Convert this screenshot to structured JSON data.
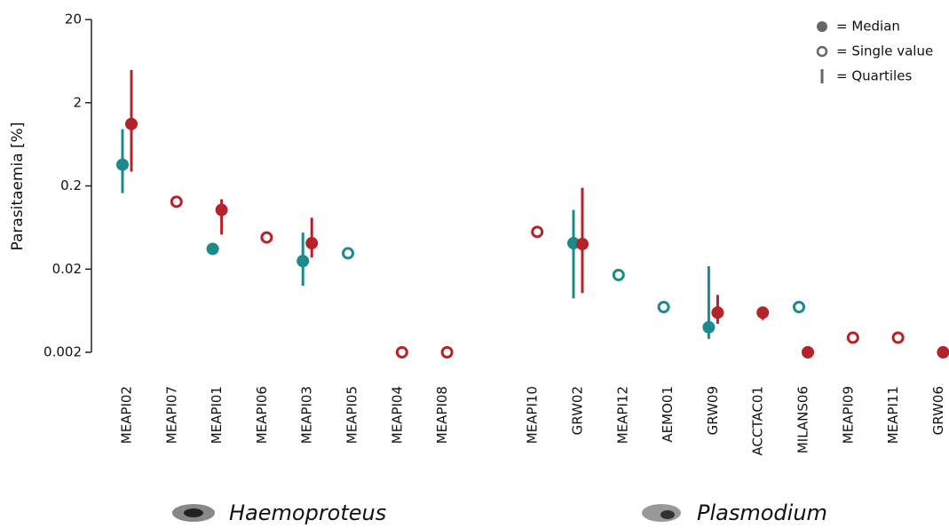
{
  "chart_data": {
    "type": "scatter",
    "ylabel": "Parasitaemia [%]",
    "log_y": true,
    "ylim": [
      0.002,
      20
    ],
    "yticks": [
      20,
      2,
      0.2,
      0.02,
      0.002
    ],
    "categories": [
      "MEAPI02",
      "MEAPI07",
      "MEAPI01",
      "MEAPI06",
      "MEAPI03",
      "MEAPI05",
      "MEAPI04",
      "MEAPI08",
      null,
      "MEAPI10",
      "GRW02",
      "MEAPI12",
      "AEMO01",
      "GRW09",
      "ACCTAC01",
      "MILANS06",
      "MEAPI09",
      "MEAPI11",
      "GRW06"
    ],
    "series": [
      {
        "color": "#1b8a8a",
        "values": [
          0.36,
          null,
          0.035,
          null,
          0.025,
          0.031,
          null,
          null,
          null,
          null,
          0.041,
          0.017,
          0.007,
          0.004,
          null,
          0.007,
          null,
          null,
          null
        ],
        "marker": [
          "median",
          null,
          "median",
          null,
          "median",
          "single",
          null,
          null,
          null,
          null,
          "median",
          "single",
          "single",
          "median",
          null,
          "single",
          null,
          null,
          null
        ],
        "q1": [
          0.164,
          null,
          null,
          null,
          0.0126,
          null,
          null,
          null,
          null,
          null,
          0.0089,
          null,
          null,
          0.0029,
          null,
          null,
          null,
          null,
          null
        ],
        "q3": [
          0.96,
          null,
          null,
          null,
          0.055,
          null,
          null,
          null,
          null,
          null,
          0.103,
          null,
          null,
          0.0216,
          null,
          null,
          null,
          null,
          null
        ]
      },
      {
        "color": "#b5232a",
        "values": [
          1.11,
          0.129,
          0.103,
          0.048,
          0.041,
          null,
          0.002,
          0.002,
          null,
          0.056,
          0.04,
          null,
          null,
          0.006,
          0.006,
          0.002,
          0.003,
          0.003,
          0.002
        ],
        "marker": [
          "median",
          "single",
          "median",
          "single",
          "median",
          null,
          "single",
          "single",
          null,
          "single",
          "median",
          null,
          null,
          "median",
          "median",
          "median",
          "single",
          "single",
          "median"
        ],
        "q1": [
          0.296,
          null,
          0.052,
          null,
          0.0275,
          null,
          null,
          null,
          null,
          null,
          0.0103,
          null,
          null,
          0.0044,
          0.0049,
          null,
          null,
          null,
          null
        ],
        "q3": [
          4.95,
          null,
          0.138,
          null,
          0.083,
          null,
          null,
          null,
          null,
          null,
          0.19,
          null,
          null,
          0.0098,
          0.0068,
          null,
          null,
          null,
          null
        ]
      }
    ],
    "legend": [
      "= Median",
      "= Single value",
      "= Quartiles"
    ],
    "groups": [
      "Haemoproteus",
      "Plasmodium"
    ]
  }
}
